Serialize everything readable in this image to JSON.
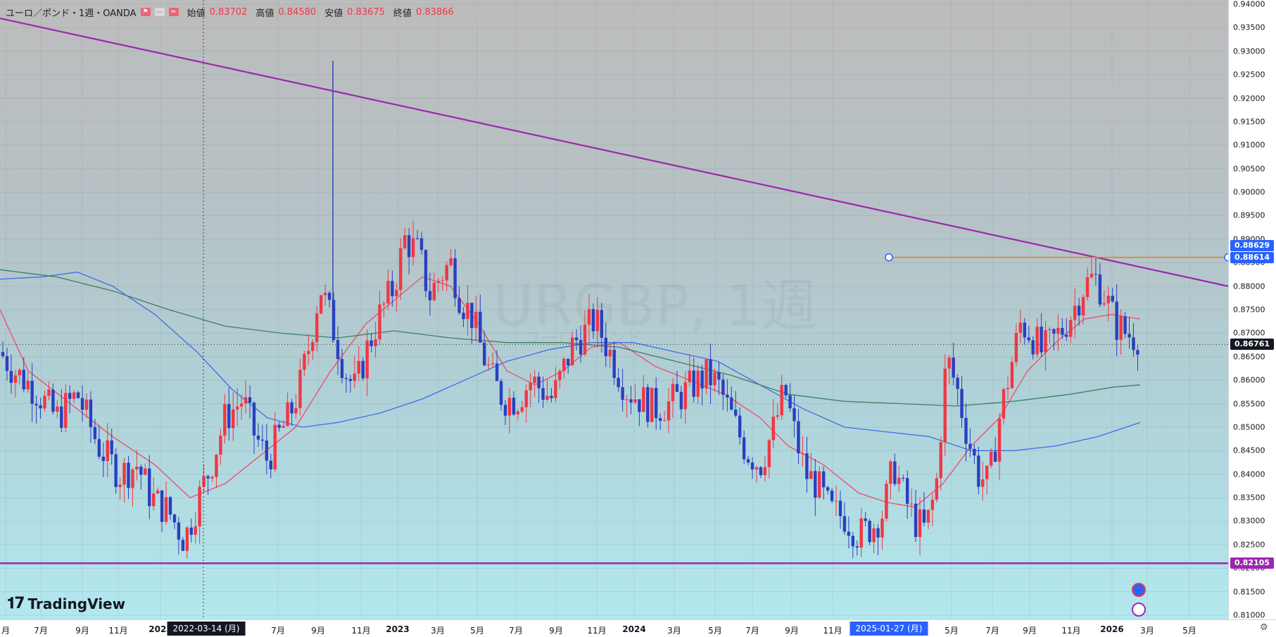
{
  "header": {
    "symbol": "ユーロ／ポンド・1週・OANDA",
    "open_key": "始値",
    "open_val": "0.83702",
    "high_key": "高値",
    "high_val": "0.84580",
    "low_key": "安値",
    "low_val": "0.83675",
    "close_key": "終値",
    "close_val": "0.83866"
  },
  "watermark": {
    "symbol": "URGBP, 1週",
    "sub": "ユーロ／ポンド"
  },
  "branding": {
    "logo_text": "TradingView"
  },
  "colors": {
    "up": "#f23645",
    "down": "#2a3fbf",
    "ma_fast": "#ef4b6a",
    "ma_mid": "#3f6fe8",
    "ma_slow": "#3f7f62",
    "trendline": "#9c27b0",
    "horizontal": "#f57c00",
    "support": "#9c27b0"
  },
  "price_axis": {
    "ticks": [
      "0.94000",
      "0.93500",
      "0.93000",
      "0.92500",
      "0.92000",
      "0.91500",
      "0.91000",
      "0.90500",
      "0.90000",
      "0.89500",
      "0.89000",
      "0.88500",
      "0.88000",
      "0.87500",
      "0.87000",
      "0.86500",
      "0.86000",
      "0.85500",
      "0.85000",
      "0.84500",
      "0.84000",
      "0.83500",
      "0.83000",
      "0.82500",
      "0.82000",
      "0.81500",
      "0.81000"
    ],
    "labels": {
      "level_high": "0.88629",
      "level_line": "0.88614",
      "current": "0.86761",
      "support": "0.82105"
    }
  },
  "time_axis": {
    "labels": [
      "月",
      "7月",
      "9月",
      "11月",
      "2022",
      "7月",
      "9月",
      "11月",
      "2023",
      "3月",
      "5月",
      "7月",
      "9月",
      "11月",
      "2024",
      "3月",
      "5月",
      "7月",
      "9月",
      "11月",
      "5月",
      "7月",
      "9月",
      "11月",
      "2026",
      "3月",
      "5月"
    ],
    "crosshair_date": "2022-03-14 (月)",
    "selected_date": "2025-01-27 (月)"
  },
  "chart_data": {
    "type": "candlestick",
    "symbol": "ユーロ／ポンド・1週・OANDA",
    "ylim": [
      0.81,
      0.94
    ],
    "x_range": [
      "2021-05",
      "2026-06"
    ],
    "ohlc_samples": [
      {
        "x": "2021-05",
        "o": 0.867,
        "h": 0.87,
        "l": 0.858,
        "c": 0.86
      },
      {
        "x": "2021-09",
        "o": 0.858,
        "h": 0.865,
        "l": 0.852,
        "c": 0.856
      },
      {
        "x": "2022-01",
        "o": 0.839,
        "h": 0.842,
        "l": 0.83,
        "c": 0.833
      },
      {
        "x": "2022-03-14",
        "o": 0.832,
        "h": 0.84,
        "l": 0.82,
        "c": 0.826
      },
      {
        "x": "2022-07",
        "o": 0.855,
        "h": 0.862,
        "l": 0.84,
        "c": 0.859
      },
      {
        "x": "2022-09",
        "o": 0.88,
        "h": 0.928,
        "l": 0.868,
        "c": 0.893
      },
      {
        "x": "2022-11",
        "o": 0.87,
        "h": 0.878,
        "l": 0.858,
        "c": 0.86
      },
      {
        "x": "2023-02",
        "o": 0.888,
        "h": 0.898,
        "l": 0.88,
        "c": 0.895
      },
      {
        "x": "2023-05",
        "o": 0.865,
        "h": 0.873,
        "l": 0.856,
        "c": 0.858
      },
      {
        "x": "2023-09",
        "o": 0.862,
        "h": 0.87,
        "l": 0.856,
        "c": 0.868
      },
      {
        "x": "2023-11",
        "o": 0.87,
        "h": 0.877,
        "l": 0.865,
        "c": 0.876
      },
      {
        "x": "2024-04",
        "o": 0.856,
        "h": 0.862,
        "l": 0.852,
        "c": 0.854
      },
      {
        "x": "2024-08",
        "o": 0.856,
        "h": 0.864,
        "l": 0.85,
        "c": 0.86
      },
      {
        "x": "2024-12",
        "o": 0.83,
        "h": 0.834,
        "l": 0.823,
        "c": 0.826
      },
      {
        "x": "2025-04",
        "o": 0.85,
        "h": 0.874,
        "l": 0.845,
        "c": 0.868
      },
      {
        "x": "2025-08",
        "o": 0.865,
        "h": 0.876,
        "l": 0.86,
        "c": 0.87
      },
      {
        "x": "2025-11",
        "o": 0.878,
        "h": 0.887,
        "l": 0.874,
        "c": 0.882
      },
      {
        "x": "2026-02",
        "o": 0.865,
        "h": 0.875,
        "l": 0.861,
        "c": 0.87
      }
    ],
    "moving_averages": [
      {
        "name": "fast",
        "color": "#ef4b6a"
      },
      {
        "name": "mid",
        "color": "#3f6fe8"
      },
      {
        "name": "slow",
        "color": "#3f7f62"
      }
    ],
    "drawings": {
      "trendline": {
        "from": {
          "x": "2021-05",
          "y": 0.937
        },
        "to": {
          "x": "2026-06",
          "y": 0.88
        }
      },
      "horizontal_level": 0.88614,
      "support_level": 0.82105,
      "current_price": 0.86761
    }
  }
}
